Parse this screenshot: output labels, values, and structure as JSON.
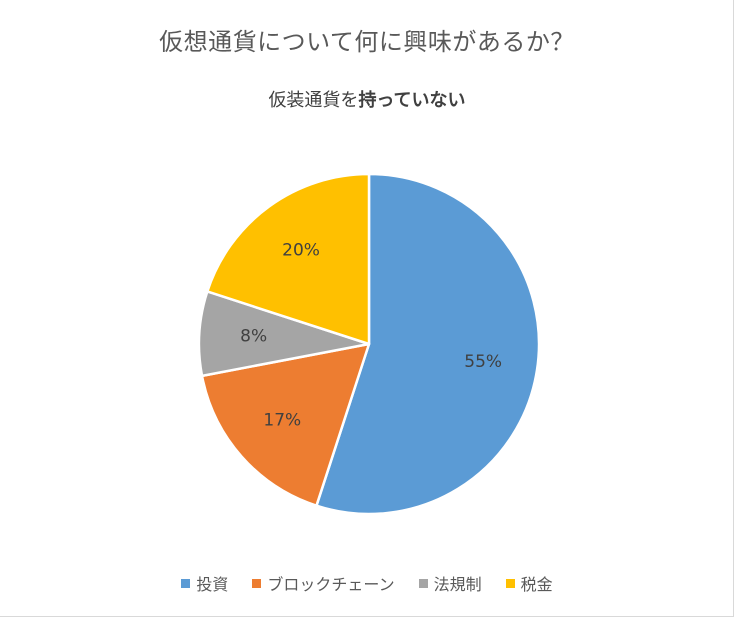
{
  "chart_data": {
    "type": "pie",
    "title": "仮想通貨について何に興味があるか？",
    "subtitle_prefix": "仮装通貨を",
    "subtitle_bold": "持っていない",
    "categories": [
      "投資",
      "ブロックチェーン",
      "法規制",
      "税金"
    ],
    "values": [
      55,
      17,
      8,
      20
    ],
    "labels": [
      "55%",
      "17%",
      "8%",
      "20%"
    ],
    "colors": [
      "#5b9bd5",
      "#ed7d31",
      "#a5a5a5",
      "#ffc000"
    ],
    "legend_position": "bottom",
    "start_angle": "12 o'clock",
    "direction": "clockwise"
  }
}
